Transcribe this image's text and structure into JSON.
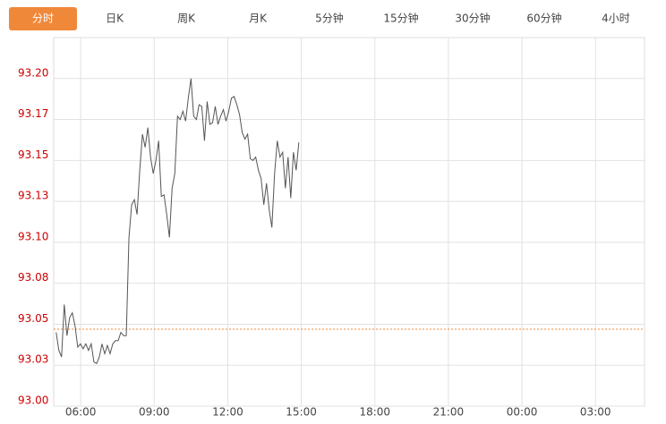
{
  "tabs": [
    "分时",
    "日K",
    "周K",
    "月K",
    "5分钟",
    "15分钟",
    "30分钟",
    "60分钟",
    "4小时"
  ],
  "active_tab": 0,
  "chart_data": {
    "type": "line",
    "x": [
      5.0,
      5.11,
      5.22,
      5.33,
      5.44,
      5.55,
      5.66,
      5.77,
      5.88,
      5.99,
      6.1,
      6.21,
      6.32,
      6.43,
      6.54,
      6.65,
      6.76,
      6.87,
      6.98,
      7.09,
      7.2,
      7.31,
      7.42,
      7.53,
      7.64,
      7.75,
      7.86,
      7.97,
      8.08,
      8.19,
      8.3,
      8.41,
      8.52,
      8.63,
      8.74,
      8.85,
      8.96,
      9.07,
      9.18,
      9.29,
      9.4,
      9.51,
      9.62,
      9.73,
      9.84,
      9.95,
      10.06,
      10.17,
      10.28,
      10.39,
      10.5,
      10.61,
      10.72,
      10.83,
      10.94,
      11.05,
      11.16,
      11.27,
      11.38,
      11.49,
      11.6,
      11.71,
      11.82,
      11.93,
      12.04,
      12.15,
      12.26,
      12.37,
      12.48,
      12.59,
      12.7,
      12.81,
      12.92,
      13.03,
      13.14,
      13.25,
      13.36,
      13.47,
      13.58,
      13.69,
      13.8,
      13.91,
      14.02,
      14.13,
      14.24,
      14.35,
      14.46,
      14.57,
      14.68,
      14.79,
      14.9
    ],
    "series": [
      {
        "color": "#555555",
        "values": [
          93.045,
          93.034,
          93.03,
          93.062,
          93.043,
          93.054,
          93.057,
          93.049,
          93.036,
          93.038,
          93.035,
          93.038,
          93.034,
          93.038,
          93.027,
          93.026,
          93.03,
          93.038,
          93.032,
          93.037,
          93.032,
          93.038,
          93.04,
          93.04,
          93.045,
          93.043,
          93.043,
          93.103,
          93.123,
          93.126,
          93.117,
          93.144,
          93.166,
          93.158,
          93.17,
          93.152,
          93.142,
          93.15,
          93.162,
          93.128,
          93.129,
          93.117,
          93.103,
          93.133,
          93.142,
          93.177,
          93.175,
          93.18,
          93.174,
          93.188,
          93.2,
          93.177,
          93.175,
          93.184,
          93.183,
          93.162,
          93.186,
          93.172,
          93.173,
          93.183,
          93.172,
          93.177,
          93.181,
          93.174,
          93.18,
          93.188,
          93.189,
          93.184,
          93.178,
          93.167,
          93.163,
          93.166,
          93.151,
          93.15,
          93.152,
          93.144,
          93.139,
          93.123,
          93.136,
          93.12,
          93.109,
          93.142,
          93.162,
          93.152,
          93.155,
          93.133,
          93.152,
          93.127,
          93.155,
          93.144,
          93.161
        ]
      }
    ],
    "reference_line": 93.047,
    "reference_color": "#f0883a",
    "xlim": [
      4.9,
      29
    ],
    "xticks": [
      {
        "value": 6,
        "label": "06:00"
      },
      {
        "value": 9,
        "label": "09:00"
      },
      {
        "value": 12,
        "label": "12:00"
      },
      {
        "value": 15,
        "label": "15:00"
      },
      {
        "value": 18,
        "label": "18:00"
      },
      {
        "value": 21,
        "label": "21:00"
      },
      {
        "value": 24,
        "label": "00:00"
      },
      {
        "value": 27,
        "label": "03:00"
      }
    ],
    "ylim": [
      93.0,
      93.225
    ],
    "yticks": [
      {
        "value": 93.0,
        "label": "93.00"
      },
      {
        "value": 93.025,
        "label": "93.03"
      },
      {
        "value": 93.05,
        "label": "93.05"
      },
      {
        "value": 93.075,
        "label": "93.08"
      },
      {
        "value": 93.1,
        "label": "93.10"
      },
      {
        "value": 93.125,
        "label": "93.13"
      },
      {
        "value": 93.15,
        "label": "93.15"
      },
      {
        "value": 93.175,
        "label": "93.17"
      },
      {
        "value": 93.2,
        "label": "93.20"
      }
    ],
    "grid": true
  }
}
